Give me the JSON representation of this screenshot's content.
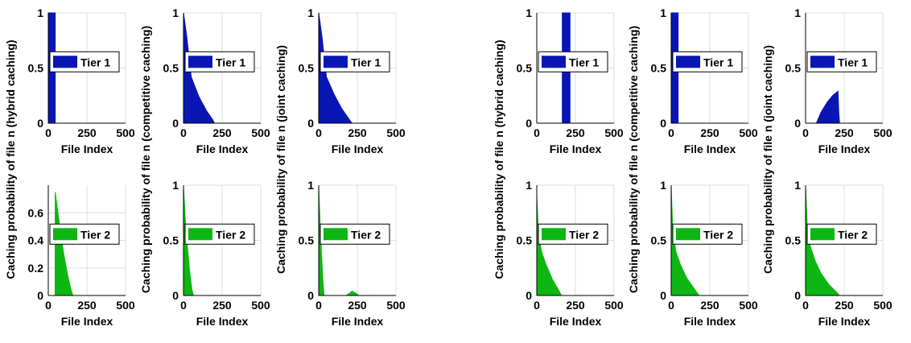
{
  "colors": {
    "tier1": "#0a16b4",
    "tier2": "#0db612",
    "grid": "#dcdcdc"
  },
  "chart_data": [
    {
      "type": "area",
      "group": "left",
      "tier": 1,
      "xlabel": "File Index",
      "ylabel": "",
      "legend": "Tier 1",
      "xlim": [
        0,
        500
      ],
      "ylim": [
        0,
        1
      ],
      "xticks": [
        "0",
        "250",
        "500"
      ],
      "yticks": [
        "0",
        "0.5",
        "1"
      ],
      "series": [
        {
          "name": "Tier 1",
          "points": [
            [
              0,
              1
            ],
            [
              45,
              1
            ],
            [
              45,
              0
            ],
            [
              500,
              0
            ]
          ]
        }
      ]
    },
    {
      "type": "area",
      "group": "left",
      "tier": 1,
      "xlabel": "File Index",
      "ylabel": "",
      "legend": "Tier 1",
      "xlim": [
        0,
        500
      ],
      "ylim": [
        0,
        1
      ],
      "xticks": [
        "0",
        "250",
        "500"
      ],
      "yticks": [
        "0",
        "0.5",
        "1"
      ],
      "series": [
        {
          "name": "Tier 1",
          "points": [
            [
              0,
              1
            ],
            [
              20,
              0.8
            ],
            [
              50,
              0.42
            ],
            [
              100,
              0.24
            ],
            [
              150,
              0.11
            ],
            [
              190,
              0.03
            ],
            [
              200,
              0
            ],
            [
              500,
              0
            ]
          ]
        }
      ]
    },
    {
      "type": "area",
      "group": "left",
      "tier": 1,
      "xlabel": "File Index",
      "ylabel": "",
      "legend": "Tier 1",
      "xlim": [
        0,
        500
      ],
      "ylim": [
        0,
        1
      ],
      "xticks": [
        "0",
        "250",
        "500"
      ],
      "yticks": [
        "0",
        "0.5",
        "1"
      ],
      "series": [
        {
          "name": "Tier 1",
          "points": [
            [
              0,
              1
            ],
            [
              20,
              0.8
            ],
            [
              50,
              0.42
            ],
            [
              100,
              0.26
            ],
            [
              150,
              0.13
            ],
            [
              200,
              0.03
            ],
            [
              215,
              0
            ],
            [
              500,
              0
            ]
          ]
        }
      ]
    },
    {
      "type": "area",
      "group": "left",
      "tier": 2,
      "xlabel": "File Index",
      "ylabel": "Caching probability of file n (hybrid caching)",
      "legend": "Tier 2",
      "xlim": [
        0,
        500
      ],
      "ylim": [
        0,
        0.8
      ],
      "xticks": [
        "0",
        "250",
        "500"
      ],
      "yticks": [
        "0",
        "0.2",
        "0.4",
        "0.6"
      ],
      "series": [
        {
          "name": "Tier 2",
          "points": [
            [
              0,
              0
            ],
            [
              44,
              0
            ],
            [
              45,
              0.75
            ],
            [
              60,
              0.62
            ],
            [
              80,
              0.45
            ],
            [
              100,
              0.3
            ],
            [
              125,
              0.15
            ],
            [
              150,
              0.03
            ],
            [
              160,
              0
            ],
            [
              500,
              0
            ]
          ]
        }
      ]
    },
    {
      "type": "area",
      "group": "left",
      "tier": 2,
      "xlabel": "File Index",
      "ylabel": "Caching probability of file n (competitive caching)",
      "legend": "Tier 2",
      "xlim": [
        0,
        500
      ],
      "ylim": [
        0,
        1
      ],
      "xticks": [
        "0",
        "250",
        "500"
      ],
      "yticks": [
        "0",
        "0.5",
        "1"
      ],
      "series": [
        {
          "name": "Tier 2",
          "points": [
            [
              0,
              1
            ],
            [
              10,
              0.72
            ],
            [
              25,
              0.45
            ],
            [
              40,
              0.22
            ],
            [
              55,
              0.05
            ],
            [
              65,
              0
            ],
            [
              500,
              0
            ]
          ]
        }
      ]
    },
    {
      "type": "area",
      "group": "left",
      "tier": 2,
      "xlabel": "File Index",
      "ylabel": "Caching probability of file n (joint caching)",
      "legend": "Tier 2",
      "xlim": [
        0,
        500
      ],
      "ylim": [
        0,
        1
      ],
      "xticks": [
        "0",
        "250",
        "500"
      ],
      "yticks": [
        "0",
        "0.5",
        "1"
      ],
      "series": [
        {
          "name": "Tier 2",
          "points": [
            [
              0,
              1
            ],
            [
              8,
              0.7
            ],
            [
              18,
              0.38
            ],
            [
              28,
              0.12
            ],
            [
              35,
              0
            ],
            [
              175,
              0
            ],
            [
              200,
              0.02
            ],
            [
              215,
              0.04
            ],
            [
              240,
              0.02
            ],
            [
              260,
              0
            ],
            [
              500,
              0
            ]
          ]
        }
      ]
    },
    {
      "type": "area",
      "group": "right",
      "tier": 1,
      "xlabel": "File Index",
      "ylabel": "",
      "legend": "Tier 1",
      "xlim": [
        0,
        500
      ],
      "ylim": [
        0,
        1
      ],
      "xticks": [
        "0",
        "250",
        "500"
      ],
      "yticks": [
        "0",
        "0.5",
        "1"
      ],
      "series": [
        {
          "name": "Tier 1",
          "points": [
            [
              0,
              0
            ],
            [
              165,
              0
            ],
            [
              165,
              1
            ],
            [
              215,
              1
            ],
            [
              215,
              0
            ],
            [
              500,
              0
            ]
          ]
        }
      ]
    },
    {
      "type": "area",
      "group": "right",
      "tier": 1,
      "xlabel": "File Index",
      "ylabel": "",
      "legend": "Tier 1",
      "xlim": [
        0,
        500
      ],
      "ylim": [
        0,
        1
      ],
      "xticks": [
        "0",
        "250",
        "500"
      ],
      "yticks": [
        "0",
        "0.5",
        "1"
      ],
      "series": [
        {
          "name": "Tier 1",
          "points": [
            [
              0,
              1
            ],
            [
              45,
              1
            ],
            [
              45,
              0
            ],
            [
              500,
              0
            ]
          ]
        }
      ]
    },
    {
      "type": "area",
      "group": "right",
      "tier": 1,
      "xlabel": "File Index",
      "ylabel": "",
      "legend": "Tier 1",
      "xlim": [
        0,
        500
      ],
      "ylim": [
        0,
        1
      ],
      "xticks": [
        "0",
        "250",
        "500"
      ],
      "yticks": [
        "0",
        "0.5",
        "1"
      ],
      "series": [
        {
          "name": "Tier 1",
          "points": [
            [
              0,
              0
            ],
            [
              70,
              0
            ],
            [
              100,
              0.1
            ],
            [
              140,
              0.19
            ],
            [
              175,
              0.25
            ],
            [
              210,
              0.29
            ],
            [
              215,
              0.1
            ],
            [
              220,
              0
            ],
            [
              500,
              0
            ]
          ]
        }
      ]
    },
    {
      "type": "area",
      "group": "right",
      "tier": 2,
      "xlabel": "File Index",
      "ylabel": "Caching probability of file n (hybrid caching)",
      "legend": "Tier 2",
      "xlim": [
        0,
        500
      ],
      "ylim": [
        0,
        1
      ],
      "xticks": [
        "0",
        "250",
        "500"
      ],
      "yticks": [
        "0",
        "0.5",
        "1"
      ],
      "series": [
        {
          "name": "Tier 2",
          "points": [
            [
              0,
              0.9
            ],
            [
              10,
              0.6
            ],
            [
              30,
              0.4
            ],
            [
              60,
              0.28
            ],
            [
              100,
              0.15
            ],
            [
              140,
              0.05
            ],
            [
              160,
              0
            ],
            [
              500,
              0
            ]
          ]
        }
      ]
    },
    {
      "type": "area",
      "group": "right",
      "tier": 2,
      "xlabel": "File Index",
      "ylabel": "Caching probability of file n (competitive caching)",
      "legend": "Tier 2",
      "xlim": [
        0,
        500
      ],
      "ylim": [
        0,
        1
      ],
      "xticks": [
        "0",
        "250",
        "500"
      ],
      "yticks": [
        "0",
        "0.5",
        "1"
      ],
      "series": [
        {
          "name": "Tier 2",
          "points": [
            [
              0,
              1
            ],
            [
              10,
              0.6
            ],
            [
              30,
              0.4
            ],
            [
              60,
              0.28
            ],
            [
              100,
              0.16
            ],
            [
              150,
              0.06
            ],
            [
              180,
              0
            ],
            [
              500,
              0
            ]
          ]
        }
      ]
    },
    {
      "type": "area",
      "group": "right",
      "tier": 2,
      "xlabel": "File Index",
      "ylabel": "Caching probability of file n (joint caching)",
      "legend": "Tier 2",
      "xlim": [
        0,
        500
      ],
      "ylim": [
        0,
        1
      ],
      "xticks": [
        "0",
        "250",
        "500"
      ],
      "yticks": [
        "0",
        "0.5",
        "1"
      ],
      "series": [
        {
          "name": "Tier 2",
          "points": [
            [
              0,
              1
            ],
            [
              10,
              0.65
            ],
            [
              30,
              0.45
            ],
            [
              60,
              0.32
            ],
            [
              100,
              0.2
            ],
            [
              150,
              0.1
            ],
            [
              200,
              0.03
            ],
            [
              220,
              0
            ],
            [
              500,
              0
            ]
          ]
        }
      ]
    }
  ]
}
